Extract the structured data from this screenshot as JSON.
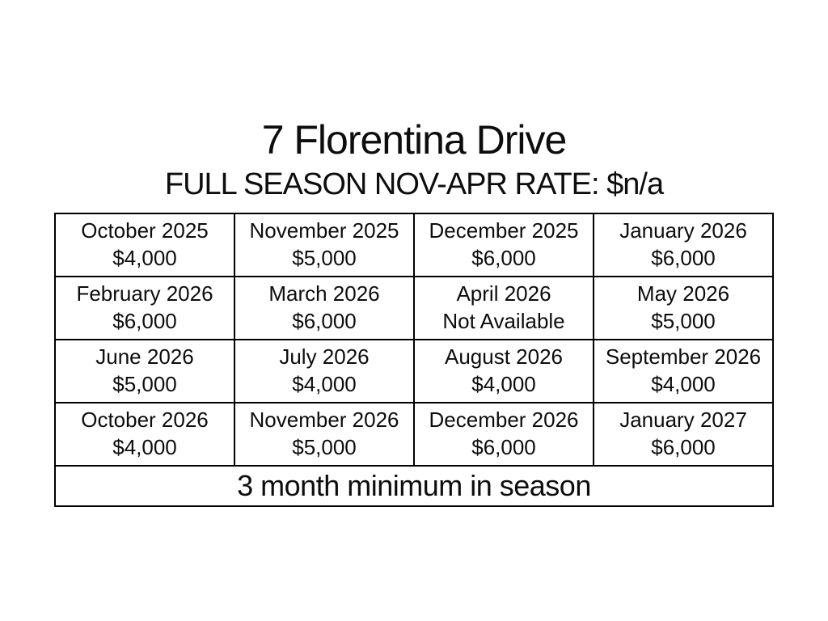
{
  "page": {
    "title": "7 Florentina Drive",
    "subtitle": "FULL SEASON NOV-APR RATE: $n/a"
  },
  "rate_table": {
    "rows": [
      {
        "cells": [
          {
            "month": "October 2025",
            "price": "$4,000"
          },
          {
            "month": "November 2025",
            "price": "$5,000"
          },
          {
            "month": "December 2025",
            "price": "$6,000"
          },
          {
            "month": "January 2026",
            "price": "$6,000"
          }
        ]
      },
      {
        "cells": [
          {
            "month": "February 2026",
            "price": "$6,000"
          },
          {
            "month": "March 2026",
            "price": "$6,000"
          },
          {
            "month": "April 2026",
            "price": "Not Available"
          },
          {
            "month": "May 2026",
            "price": "$5,000"
          }
        ]
      },
      {
        "cells": [
          {
            "month": "June 2026",
            "price": "$5,000"
          },
          {
            "month": "July 2026",
            "price": "$4,000"
          },
          {
            "month": "August 2026",
            "price": "$4,000"
          },
          {
            "month": "September 2026",
            "price": "$4,000"
          }
        ]
      },
      {
        "cells": [
          {
            "month": "October 2026",
            "price": "$4,000"
          },
          {
            "month": "November 2026",
            "price": "$5,000"
          },
          {
            "month": "December 2026",
            "price": "$6,000"
          },
          {
            "month": "January 2027",
            "price": "$6,000"
          }
        ]
      }
    ],
    "footer": "3 month minimum in season"
  },
  "colors": {
    "background": "#ffffff",
    "text": "#0d0d0d",
    "border": "#000000"
  }
}
